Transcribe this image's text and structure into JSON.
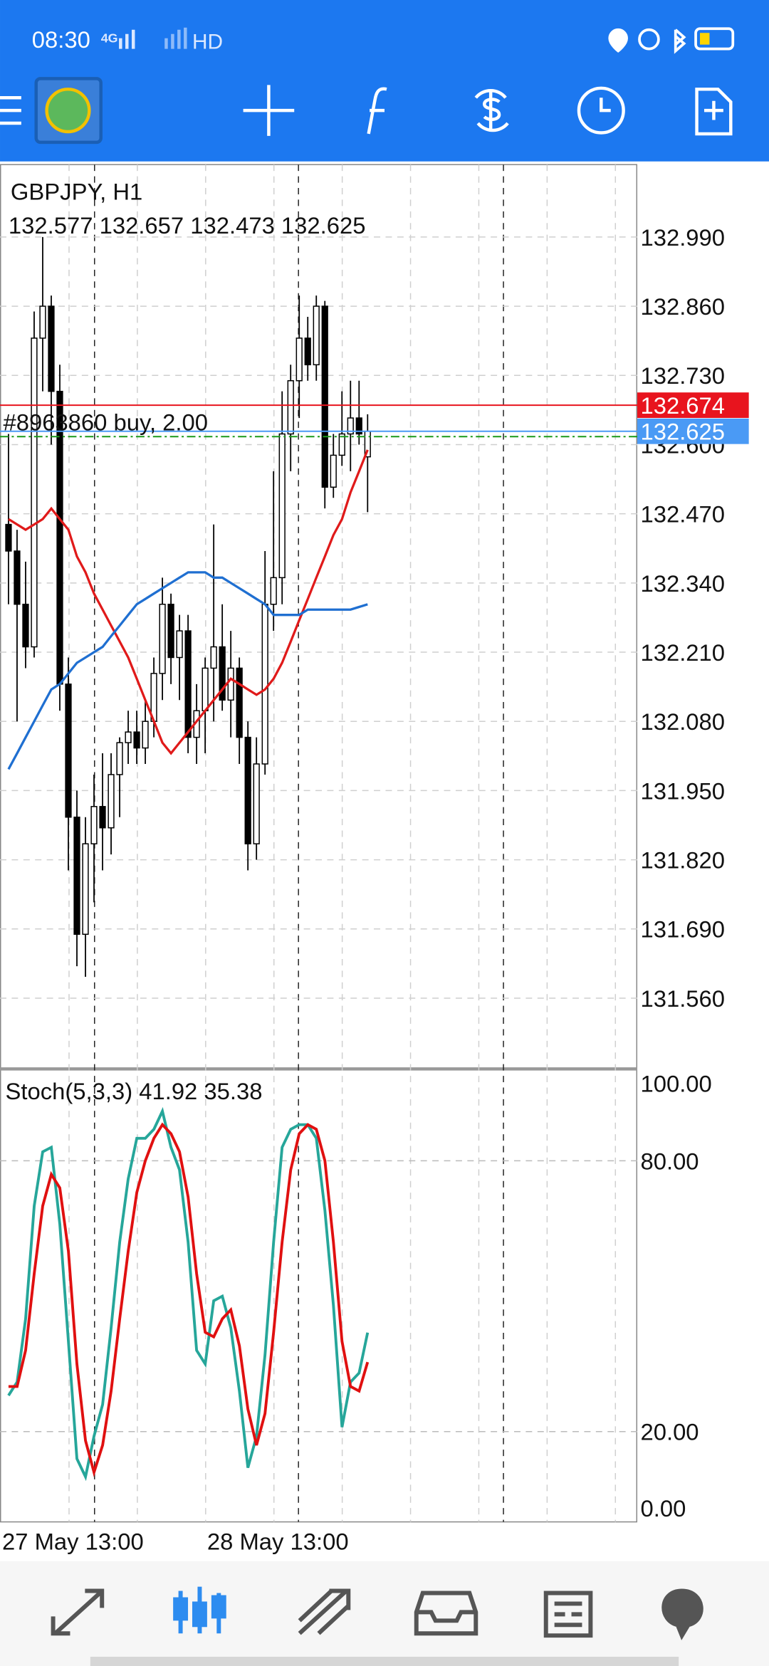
{
  "status_bar": {
    "time": "08:30",
    "network": "4G",
    "hd": "HD"
  },
  "chart": {
    "symbol": "GBPJPY, H1",
    "ohlc_text": "132.577 132.657 132.473 132.625",
    "order_label": "#8963860 buy, 2.00",
    "order_price": 132.615,
    "ask": {
      "value": 132.674,
      "label": "132.674",
      "color": "#e8141e"
    },
    "bid": {
      "value": 132.625,
      "label": "132.625",
      "color": "#4a9af5"
    },
    "ylim": [
      131.428,
      133.126
    ],
    "yticks": [
      {
        "value": 132.99,
        "label": "132.990"
      },
      {
        "value": 132.86,
        "label": "132.860"
      },
      {
        "value": 132.73,
        "label": "132.730"
      },
      {
        "value": 132.6,
        "label": "132.600"
      },
      {
        "value": 132.47,
        "label": "132.470"
      },
      {
        "value": 132.34,
        "label": "132.340"
      },
      {
        "value": 132.21,
        "label": "132.210"
      },
      {
        "value": 132.08,
        "label": "132.080"
      },
      {
        "value": 131.95,
        "label": "131.950"
      },
      {
        "value": 131.82,
        "label": "131.820"
      },
      {
        "value": 131.69,
        "label": "131.690"
      },
      {
        "value": 131.56,
        "label": "131.560"
      }
    ],
    "candles": {
      "open": [
        132.45,
        132.4,
        132.3,
        132.22,
        132.8,
        132.86,
        132.7,
        132.15,
        131.9,
        131.68,
        131.85,
        131.92,
        131.88,
        131.98,
        132.04,
        132.06,
        132.03,
        132.08,
        132.17,
        132.3,
        132.2,
        132.25,
        132.05,
        132.1,
        132.18,
        132.22,
        132.12,
        132.18,
        132.05,
        131.85,
        132.0,
        132.3,
        132.35,
        132.62,
        132.72,
        132.8,
        132.75,
        132.86,
        132.52,
        132.58,
        132.62,
        132.65,
        132.577
      ],
      "high": [
        132.62,
        132.44,
        132.38,
        132.85,
        132.99,
        132.88,
        132.75,
        132.2,
        131.95,
        131.9,
        131.98,
        132.02,
        132.02,
        132.05,
        132.1,
        132.1,
        132.12,
        132.2,
        132.35,
        132.32,
        132.28,
        132.28,
        132.15,
        132.2,
        132.45,
        132.3,
        132.25,
        132.2,
        132.08,
        132.05,
        132.4,
        132.55,
        132.7,
        132.75,
        132.88,
        132.84,
        132.88,
        132.87,
        132.62,
        132.7,
        132.72,
        132.72,
        132.657
      ],
      "low": [
        132.3,
        132.08,
        132.18,
        132.2,
        132.7,
        132.6,
        132.1,
        131.8,
        131.62,
        131.6,
        131.74,
        131.8,
        131.83,
        131.9,
        132.0,
        132.0,
        132.0,
        132.05,
        132.12,
        132.15,
        132.12,
        132.02,
        132.0,
        132.02,
        132.08,
        132.1,
        132.05,
        132.0,
        131.8,
        131.82,
        131.98,
        132.25,
        132.3,
        132.55,
        132.65,
        132.72,
        132.72,
        132.48,
        132.5,
        132.56,
        132.55,
        132.6,
        132.473
      ],
      "close": [
        132.4,
        132.3,
        132.22,
        132.8,
        132.86,
        132.7,
        132.15,
        131.9,
        131.68,
        131.85,
        131.92,
        131.88,
        131.98,
        132.04,
        132.06,
        132.03,
        132.08,
        132.17,
        132.3,
        132.2,
        132.25,
        132.05,
        132.1,
        132.18,
        132.22,
        132.12,
        132.18,
        132.05,
        131.85,
        132.0,
        132.3,
        132.35,
        132.62,
        132.72,
        132.8,
        132.75,
        132.86,
        132.52,
        132.58,
        132.62,
        132.65,
        132.62,
        132.625
      ]
    },
    "ma_series": [
      {
        "color": "#e01a1a",
        "values": [
          132.46,
          132.45,
          132.44,
          132.45,
          132.46,
          132.48,
          132.46,
          132.44,
          132.39,
          132.36,
          132.32,
          132.29,
          132.26,
          132.23,
          132.2,
          132.16,
          132.12,
          132.08,
          132.04,
          132.02,
          132.04,
          132.06,
          132.08,
          132.1,
          132.12,
          132.14,
          132.16,
          132.15,
          132.14,
          132.13,
          132.14,
          132.16,
          132.19,
          132.23,
          132.27,
          132.31,
          132.35,
          132.39,
          132.43,
          132.46,
          132.51,
          132.55,
          132.59
        ]
      },
      {
        "color": "#1f6fd1",
        "values": [
          131.99,
          132.02,
          132.05,
          132.08,
          132.11,
          132.14,
          132.15,
          132.17,
          132.19,
          132.2,
          132.21,
          132.22,
          132.24,
          132.26,
          132.28,
          132.3,
          132.31,
          132.32,
          132.33,
          132.34,
          132.35,
          132.36,
          132.36,
          132.36,
          132.35,
          132.35,
          132.34,
          132.33,
          132.32,
          132.31,
          132.3,
          132.28,
          132.28,
          132.28,
          132.28,
          132.29,
          132.29,
          132.29,
          132.29,
          132.29,
          132.29,
          132.295,
          132.3
        ]
      }
    ],
    "time_labels": [
      "27 May 13:00",
      "28 May 13:00"
    ]
  },
  "stochastic": {
    "label": "Stoch(5,3,3) 41.92 35.38",
    "ylim": [
      0,
      100
    ],
    "yticks": [
      {
        "value": 100,
        "label": "100.00"
      },
      {
        "value": 80,
        "label": "80.00"
      },
      {
        "value": 20,
        "label": "20.00"
      },
      {
        "value": 0,
        "label": "0.00"
      }
    ],
    "levels": [
      80,
      20
    ],
    "series": [
      {
        "color": "#26a69a",
        "values": [
          28,
          31,
          45,
          70,
          82,
          83,
          66,
          40,
          14,
          10,
          19,
          26,
          43,
          62,
          76,
          85,
          85,
          87,
          91,
          83,
          78,
          62,
          38,
          35,
          49,
          50,
          43,
          29,
          12,
          19,
          37,
          62,
          83,
          87,
          88,
          88,
          85,
          69,
          48,
          21,
          31,
          33,
          41.92
        ]
      },
      {
        "color": "#e01010",
        "values": [
          30,
          30,
          38,
          55,
          70,
          77,
          74,
          60,
          35,
          18,
          11,
          17,
          29,
          45,
          60,
          73,
          80,
          85,
          88,
          86,
          82,
          72,
          55,
          42,
          41,
          45,
          47,
          39,
          25,
          17,
          24,
          42,
          62,
          78,
          86,
          88,
          87,
          80,
          62,
          40,
          30,
          29,
          35.38
        ]
      }
    ]
  }
}
